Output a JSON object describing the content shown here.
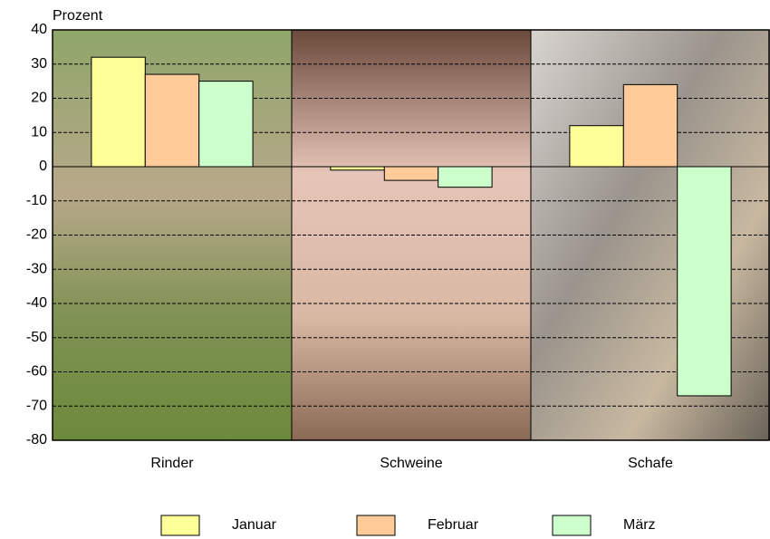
{
  "chart_data": {
    "type": "bar",
    "y_label": "Prozent",
    "categories": [
      "Rinder",
      "Schweine",
      "Schafe"
    ],
    "series": [
      {
        "name": "Januar",
        "color": "#ffff99",
        "values": [
          32,
          -1,
          12
        ]
      },
      {
        "name": "Februar",
        "color": "#ffcc99",
        "values": [
          27,
          -4,
          24
        ]
      },
      {
        "name": "März",
        "color": "#ccffcc",
        "values": [
          25,
          -6,
          -67
        ]
      }
    ],
    "ylim": [
      -80,
      40
    ],
    "yticks": [
      -80,
      -70,
      -60,
      -50,
      -40,
      -30,
      -20,
      -10,
      0,
      10,
      20,
      30,
      40
    ],
    "grid": true
  }
}
